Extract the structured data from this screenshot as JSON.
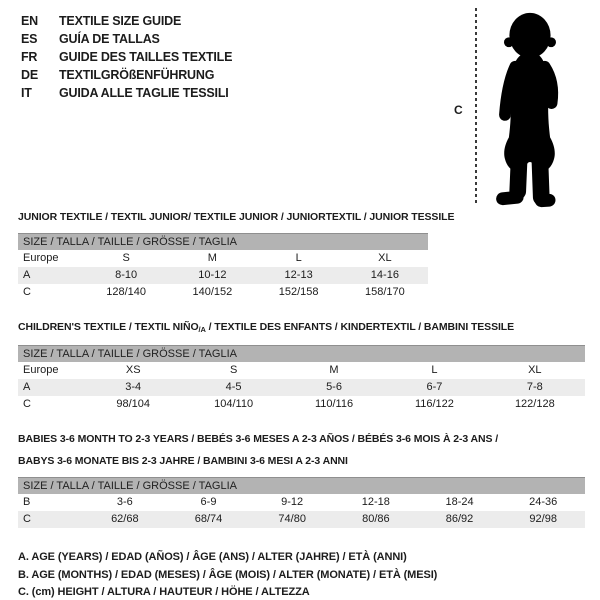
{
  "header": {
    "items": [
      {
        "code": "EN",
        "title": "TEXTILE SIZE GUIDE"
      },
      {
        "code": "ES",
        "title": "GUÍA DE TALLAS"
      },
      {
        "code": "FR",
        "title": "GUIDE DES TAILLES TEXTILE"
      },
      {
        "code": "DE",
        "title": "TEXTILGRÖßENFÜHRUNG"
      },
      {
        "code": "IT",
        "title": "GUIDA ALLE TAGLIE TESSILI"
      }
    ]
  },
  "figure": {
    "label": "C",
    "icon": "toddler-silhouette"
  },
  "tables": [
    {
      "title_lines": [
        [
          {
            "t": "JUNIOR TEXTILE / TEXTIL JUNIOR/ TEXTILE JUNIOR / JUNIORTEXTIL / JUNIOR TESSILE"
          }
        ]
      ],
      "size_header": "SIZE / TALLA / TAILLE / GRÖSSE / TAGLIA",
      "rows": [
        {
          "label": "Europe",
          "values": [
            "S",
            "M",
            "L",
            "XL"
          ],
          "shaded": false
        },
        {
          "label": "A",
          "values": [
            "8-10",
            "10-12",
            "12-13",
            "14-16"
          ],
          "shaded": true
        },
        {
          "label": "C",
          "values": [
            "128/140",
            "140/152",
            "152/158",
            "158/170"
          ],
          "shaded": false
        }
      ]
    },
    {
      "title_lines": [
        [
          {
            "t": "CHILDREN'S TEXTILE / TEXTIL NIÑO"
          },
          {
            "t": "/A",
            "sub": true
          },
          {
            "t": " / TEXTILE DES ENFANTS / KINDERTEXTIL / BAMBINI TESSILE"
          }
        ]
      ],
      "size_header": "SIZE / TALLA / TAILLE / GRÖSSE / TAGLIA",
      "rows": [
        {
          "label": "Europe",
          "values": [
            "XS",
            "S",
            "M",
            "L",
            "XL"
          ],
          "shaded": false
        },
        {
          "label": "A",
          "values": [
            "3-4",
            "4-5",
            "5-6",
            "6-7",
            "7-8"
          ],
          "shaded": true
        },
        {
          "label": "C",
          "values": [
            "98/104",
            "104/110",
            "110/116",
            "116/122",
            "122/128"
          ],
          "shaded": false
        }
      ]
    },
    {
      "title_lines": [
        [
          {
            "t": "BABIES 3-6 MONTH TO 2-3 YEARS / BEBÉS 3-6 MESES A 2-3 AÑOS / BÉBÉS 3-6 MOIS À 2-3 ANS /"
          }
        ],
        [
          {
            "t": "BABYS 3-6 MONATE BIS 2-3 JAHRE / BAMBINI 3-6 MESI A 2-3 ANNI"
          }
        ]
      ],
      "size_header": "SIZE / TALLA / TAILLE / GRÖSSE / TAGLIA",
      "rows": [
        {
          "label": "B",
          "values": [
            "3-6",
            "6-9",
            "9-12",
            "12-18",
            "18-24",
            "24-36"
          ],
          "shaded": false
        },
        {
          "label": "C",
          "values": [
            "62/68",
            "68/74",
            "74/80",
            "80/86",
            "86/92",
            "92/98"
          ],
          "shaded": true
        }
      ]
    }
  ],
  "legend": {
    "items": [
      "A. AGE (YEARS) / EDAD (AÑOS) / ÂGE (ANS) / ALTER (JAHRE) / ETÀ (ANNI)",
      "B. AGE (MONTHS) / EDAD (MESES) / ÂGE (MOIS) / ALTER (MONATE) / ETÀ (MESI)",
      "C. (cm) HEIGHT / ALTURA / HAUTEUR / HÖHE / ALTEZZA"
    ]
  },
  "colors": {
    "table_header_bg": "#b3b3b3",
    "row_shaded_bg": "#ececec",
    "silhouette": "#000000",
    "dash_line": "#3a3a3a",
    "text": "#1c1c1c"
  }
}
